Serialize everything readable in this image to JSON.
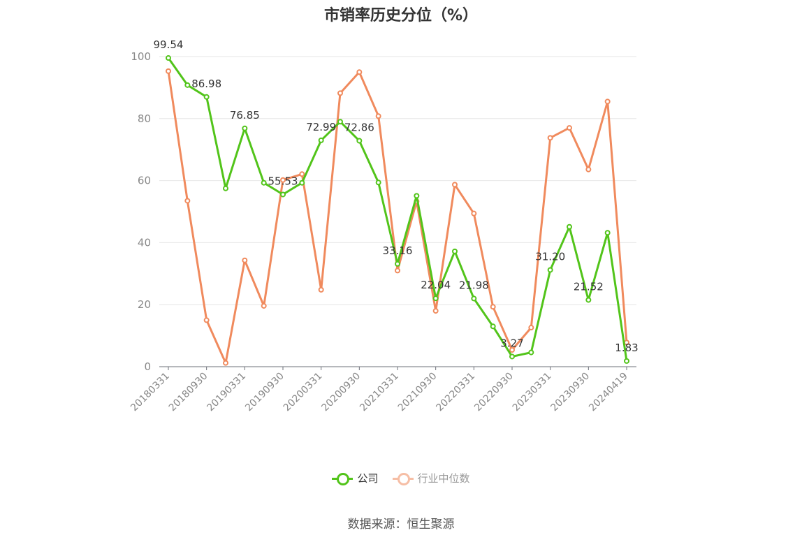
{
  "chart_data": {
    "type": "line",
    "title": "市销率历史分位（%）",
    "xlabel": "",
    "ylabel": "",
    "ylim": [
      0,
      100
    ],
    "yticks": [
      0,
      20,
      40,
      60,
      80,
      100
    ],
    "x": [
      "20180331",
      "20180630",
      "20180930",
      "20181231",
      "20190331",
      "20190630",
      "20190930",
      "20191231",
      "20200331",
      "20200630",
      "20200930",
      "20201231",
      "20210331",
      "20210630",
      "20210930",
      "20211231",
      "20220331",
      "20220630",
      "20220930",
      "20221231",
      "20230331",
      "20230630",
      "20230930",
      "20231231",
      "20240419"
    ],
    "xtick_labels": [
      "20180331",
      "20180930",
      "20190331",
      "20190930",
      "20200331",
      "20200930",
      "20210331",
      "20210930",
      "20220331",
      "20220930",
      "20230331",
      "20230930",
      "20240419"
    ],
    "series": [
      {
        "name": "公司",
        "color": "#52c41a",
        "values": [
          99.54,
          90.8,
          86.98,
          57.5,
          76.85,
          59.3,
          55.53,
          59.3,
          72.99,
          79.0,
          72.86,
          59.4,
          33.16,
          55.1,
          22.04,
          37.2,
          21.98,
          13.0,
          3.27,
          4.6,
          31.2,
          45.1,
          21.52,
          43.2,
          1.83
        ]
      },
      {
        "name": "行业中位数",
        "color": "#f08a5d",
        "values": [
          95.3,
          53.5,
          15.0,
          1.2,
          34.3,
          19.6,
          60.2,
          62.1,
          24.8,
          88.2,
          95.0,
          80.8,
          31.0,
          53.3,
          18.0,
          58.7,
          49.4,
          19.3,
          5.4,
          12.6,
          73.8,
          77.0,
          63.6,
          85.5,
          7.8
        ]
      }
    ],
    "data_labels": [
      {
        "index": 0,
        "text": "99.54"
      },
      {
        "index": 2,
        "text": "86.98"
      },
      {
        "index": 4,
        "text": "76.85"
      },
      {
        "index": 6,
        "text": "55.53"
      },
      {
        "index": 8,
        "text": "72.99"
      },
      {
        "index": 10,
        "text": "72.86"
      },
      {
        "index": 12,
        "text": "33.16"
      },
      {
        "index": 14,
        "text": "22.04"
      },
      {
        "index": 16,
        "text": "21.98"
      },
      {
        "index": 18,
        "text": "3.27"
      },
      {
        "index": 20,
        "text": "31.20"
      },
      {
        "index": 22,
        "text": "21.52"
      },
      {
        "index": 24,
        "text": "1.83"
      }
    ],
    "grid": true,
    "legend_position": "bottom"
  },
  "legend": {
    "company": "公司",
    "industry": "行业中位数",
    "company_color": "#52c41a",
    "industry_color": "#f08a5d"
  },
  "source": "数据来源：恒生聚源"
}
